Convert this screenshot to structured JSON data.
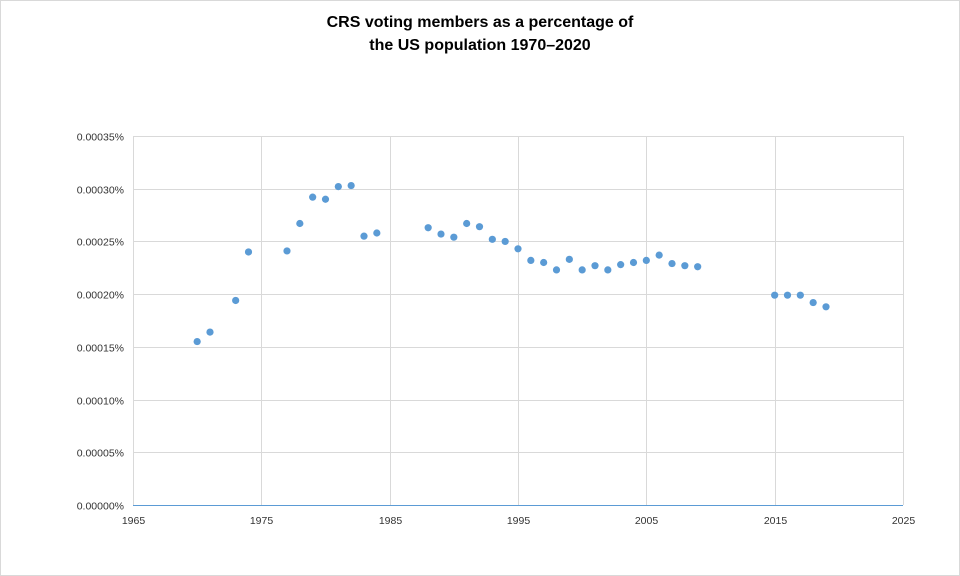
{
  "chart_data": {
    "type": "scatter",
    "title_lines": [
      "CRS voting members as a percentage of",
      "the US population 1970–2020"
    ],
    "xlabel": "",
    "ylabel": "",
    "xlim": [
      1965,
      2025
    ],
    "ylim": [
      0,
      0.00035
    ],
    "x_ticks": [
      "1965",
      "1975",
      "1985",
      "1995",
      "2005",
      "2015",
      "2025"
    ],
    "y_ticks": [
      "0.00000%",
      "0.00005%",
      "0.00010%",
      "0.00015%",
      "0.00020%",
      "0.00025%",
      "0.00030%",
      "0.00035%"
    ],
    "grid": true,
    "legend": "none",
    "marker_color": "#5b9bd5",
    "axis_color": "#5b9bd5",
    "grid_color": "#d9d9d9",
    "units": "percent",
    "points": [
      [
        1970,
        0.000155
      ],
      [
        1971,
        0.000164
      ],
      [
        1973,
        0.000194
      ],
      [
        1974,
        0.00024
      ],
      [
        1977,
        0.000241
      ],
      [
        1978,
        0.000267
      ],
      [
        1979,
        0.000292
      ],
      [
        1980,
        0.00029
      ],
      [
        1981,
        0.000302
      ],
      [
        1982,
        0.000303
      ],
      [
        1983,
        0.000255
      ],
      [
        1984,
        0.000258
      ],
      [
        1988,
        0.000263
      ],
      [
        1989,
        0.000257
      ],
      [
        1990,
        0.000254
      ],
      [
        1991,
        0.000267
      ],
      [
        1992,
        0.000264
      ],
      [
        1993,
        0.000252
      ],
      [
        1994,
        0.00025
      ],
      [
        1995,
        0.000243
      ],
      [
        1996,
        0.000232
      ],
      [
        1997,
        0.00023
      ],
      [
        1998,
        0.000223
      ],
      [
        1999,
        0.000233
      ],
      [
        2000,
        0.000223
      ],
      [
        2001,
        0.000227
      ],
      [
        2002,
        0.000223
      ],
      [
        2003,
        0.000228
      ],
      [
        2004,
        0.00023
      ],
      [
        2005,
        0.000232
      ],
      [
        2006,
        0.000237
      ],
      [
        2007,
        0.000229
      ],
      [
        2008,
        0.000227
      ],
      [
        2009,
        0.000226
      ],
      [
        2015,
        0.000199
      ],
      [
        2016,
        0.000199
      ],
      [
        2017,
        0.000199
      ],
      [
        2018,
        0.000192
      ],
      [
        2019,
        0.000188
      ]
    ]
  }
}
